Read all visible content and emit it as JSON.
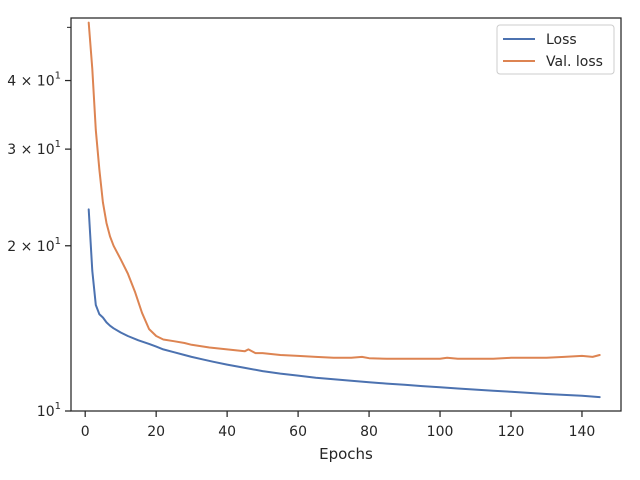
{
  "chart_data": {
    "type": "line",
    "xlabel": "Epochs",
    "ylabel": "",
    "title": "",
    "xlim": [
      -4,
      151
    ],
    "ylim": [
      10,
      52
    ],
    "yscale": "log",
    "x_ticks": [
      0,
      20,
      40,
      60,
      80,
      100,
      120,
      140
    ],
    "y_ticks": [
      {
        "value": 10,
        "base": "10",
        "exp": "1"
      },
      {
        "value": 20,
        "base": "2 × 10",
        "exp": "1"
      },
      {
        "value": 30,
        "base": "3 × 10",
        "exp": "1"
      },
      {
        "value": 40,
        "base": "4 × 10",
        "exp": "1"
      }
    ],
    "y_minor_ticks": [
      50
    ],
    "grid": false,
    "legend_position": "top-right",
    "series": [
      {
        "name": "Loss",
        "color": "#4c72b0",
        "x": [
          1,
          2,
          3,
          4,
          5,
          6,
          7,
          8,
          10,
          12,
          15,
          18,
          20,
          22,
          25,
          28,
          30,
          33,
          36,
          40,
          45,
          50,
          55,
          60,
          65,
          70,
          75,
          80,
          85,
          90,
          95,
          100,
          105,
          110,
          115,
          120,
          125,
          130,
          135,
          140,
          145
        ],
        "y": [
          23.3,
          18.0,
          15.6,
          15.0,
          14.8,
          14.5,
          14.3,
          14.15,
          13.9,
          13.7,
          13.45,
          13.25,
          13.1,
          12.95,
          12.8,
          12.65,
          12.55,
          12.42,
          12.3,
          12.15,
          11.98,
          11.82,
          11.7,
          11.6,
          11.5,
          11.42,
          11.35,
          11.28,
          11.22,
          11.16,
          11.1,
          11.05,
          10.99,
          10.94,
          10.89,
          10.84,
          10.79,
          10.74,
          10.7,
          10.66,
          10.6
        ]
      },
      {
        "name": "Val. loss",
        "color": "#dd8452",
        "x": [
          1,
          2,
          3,
          4,
          5,
          6,
          7,
          8,
          10,
          12,
          14,
          16,
          18,
          20,
          22,
          25,
          28,
          30,
          35,
          40,
          45,
          46,
          48,
          50,
          55,
          60,
          65,
          70,
          75,
          78,
          80,
          85,
          90,
          95,
          100,
          102,
          105,
          110,
          115,
          120,
          125,
          130,
          135,
          140,
          143,
          145
        ],
        "y": [
          51.0,
          42.0,
          32.5,
          27.5,
          24.0,
          22.0,
          20.8,
          20.0,
          18.9,
          17.8,
          16.5,
          15.1,
          14.1,
          13.7,
          13.5,
          13.4,
          13.3,
          13.2,
          13.05,
          12.95,
          12.85,
          12.95,
          12.75,
          12.75,
          12.65,
          12.6,
          12.55,
          12.5,
          12.5,
          12.55,
          12.48,
          12.45,
          12.45,
          12.45,
          12.45,
          12.5,
          12.45,
          12.45,
          12.45,
          12.5,
          12.5,
          12.5,
          12.55,
          12.6,
          12.55,
          12.65
        ]
      }
    ]
  }
}
